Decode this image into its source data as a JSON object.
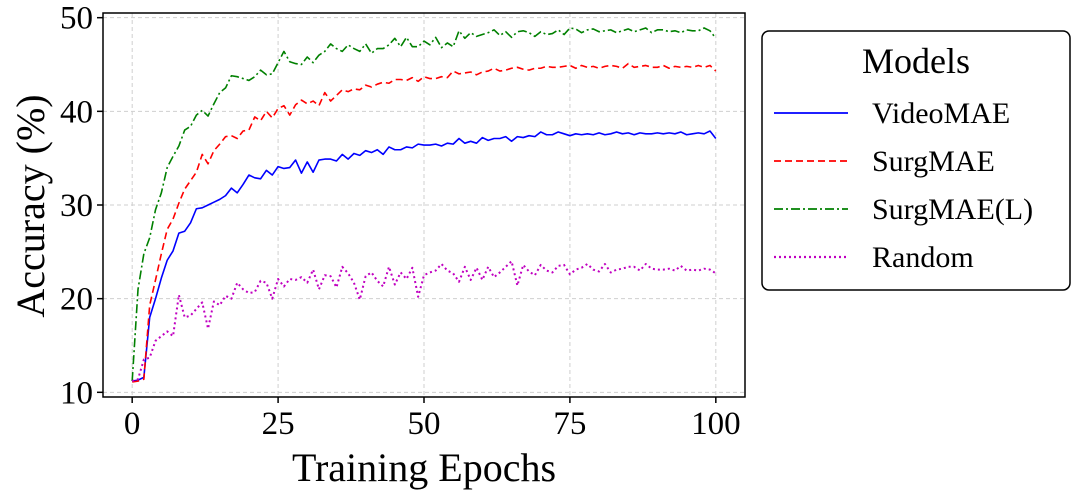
{
  "chart_data": {
    "type": "line",
    "title": "",
    "xlabel": "Training Epochs",
    "ylabel": "Accuracy (%)",
    "xlim": [
      -5,
      105
    ],
    "ylim": [
      9.5,
      50.5
    ],
    "xticks": [
      0,
      25,
      50,
      75,
      100
    ],
    "yticks": [
      10,
      20,
      30,
      40,
      50
    ],
    "grid": true,
    "legend": {
      "title": "Models",
      "position": "outside-right"
    },
    "x": [
      0,
      1,
      2,
      3,
      4,
      5,
      6,
      7,
      8,
      9,
      10,
      11,
      12,
      13,
      14,
      15,
      16,
      17,
      18,
      19,
      20,
      21,
      22,
      23,
      24,
      25,
      26,
      27,
      28,
      29,
      30,
      31,
      32,
      33,
      34,
      35,
      36,
      37,
      38,
      39,
      40,
      41,
      42,
      43,
      44,
      45,
      46,
      47,
      48,
      49,
      50,
      51,
      52,
      53,
      54,
      55,
      56,
      57,
      58,
      59,
      60,
      61,
      62,
      63,
      64,
      65,
      66,
      67,
      68,
      69,
      70,
      71,
      72,
      73,
      74,
      75,
      76,
      77,
      78,
      79,
      80,
      81,
      82,
      83,
      84,
      85,
      86,
      87,
      88,
      89,
      90,
      91,
      92,
      93,
      94,
      95,
      96,
      97,
      98,
      99,
      100
    ],
    "series": [
      {
        "name": "VideoMAE",
        "color": "#0000ff",
        "style": "solid",
        "values": [
          11.2,
          11.3,
          11.6,
          18.0,
          20.0,
          22.2,
          24.1,
          25.1,
          27.0,
          27.2,
          28.1,
          29.6,
          29.7,
          30.0,
          30.3,
          30.6,
          31.0,
          31.8,
          31.3,
          32.2,
          33.2,
          32.9,
          32.8,
          33.7,
          33.2,
          34.1,
          33.9,
          34.0,
          34.8,
          33.4,
          34.6,
          33.5,
          34.8,
          34.9,
          34.9,
          34.7,
          35.4,
          34.9,
          35.5,
          35.3,
          35.8,
          35.6,
          35.9,
          35.4,
          36.2,
          35.9,
          35.9,
          36.2,
          36.1,
          36.5,
          36.4,
          36.4,
          36.5,
          36.3,
          36.6,
          36.5,
          37.1,
          36.6,
          36.8,
          36.6,
          37.2,
          36.9,
          37.1,
          37.1,
          37.3,
          36.8,
          37.3,
          37.2,
          37.4,
          37.3,
          37.8,
          37.5,
          37.5,
          37.8,
          37.6,
          37.4,
          37.6,
          37.5,
          37.6,
          37.5,
          37.7,
          37.5,
          37.6,
          37.8,
          37.6,
          37.7,
          37.5,
          37.7,
          37.6,
          37.6,
          37.7,
          37.6,
          37.7,
          37.6,
          37.8,
          37.5,
          37.6,
          37.7,
          37.6,
          37.9,
          37.1
        ]
      },
      {
        "name": "SurgMAE",
        "color": "#ff0000",
        "style": "dashed",
        "values": [
          11.1,
          11.2,
          11.4,
          19.3,
          22.0,
          24.8,
          27.4,
          28.5,
          30.2,
          31.7,
          32.6,
          33.5,
          35.4,
          34.4,
          35.8,
          36.5,
          37.3,
          37.4,
          37.1,
          37.9,
          38.0,
          39.4,
          39.0,
          40.0,
          39.3,
          40.3,
          40.6,
          39.6,
          40.7,
          41.2,
          40.8,
          41.1,
          40.6,
          42.0,
          41.1,
          41.7,
          42.3,
          42.1,
          42.4,
          42.3,
          42.8,
          42.6,
          42.9,
          43.1,
          43.0,
          43.4,
          43.4,
          43.3,
          43.6,
          43.2,
          43.7,
          43.5,
          43.5,
          43.7,
          43.6,
          44.3,
          44.0,
          44.1,
          44.2,
          43.9,
          44.2,
          44.3,
          44.6,
          44.3,
          44.4,
          44.6,
          44.7,
          44.5,
          44.4,
          44.6,
          44.6,
          44.8,
          44.7,
          44.7,
          44.8,
          44.9,
          44.6,
          44.9,
          44.7,
          44.8,
          44.6,
          44.8,
          44.9,
          44.8,
          44.6,
          45.1,
          44.7,
          44.8,
          44.9,
          44.7,
          44.7,
          44.9,
          44.6,
          44.8,
          44.7,
          44.8,
          44.7,
          44.9,
          44.7,
          44.9,
          44.3
        ]
      },
      {
        "name": "SurgMAE(L)",
        "color": "#008000",
        "style": "dashdot",
        "values": [
          11.2,
          21.0,
          24.8,
          26.5,
          29.5,
          31.3,
          34.0,
          35.2,
          36.3,
          38.0,
          38.4,
          39.6,
          40.1,
          39.5,
          40.8,
          42.0,
          42.5,
          43.8,
          43.7,
          43.5,
          43.3,
          43.7,
          44.4,
          43.9,
          44.0,
          45.2,
          46.4,
          45.3,
          45.1,
          45.0,
          45.8,
          45.2,
          46.0,
          46.4,
          47.2,
          46.7,
          46.4,
          47.1,
          46.7,
          46.4,
          47.2,
          46.2,
          46.7,
          46.7,
          47.1,
          47.8,
          46.9,
          47.9,
          46.9,
          46.9,
          47.5,
          47.1,
          47.9,
          46.8,
          47.3,
          46.9,
          48.6,
          47.8,
          48.4,
          48.0,
          48.2,
          48.4,
          48.7,
          48.1,
          48.5,
          47.9,
          48.5,
          48.6,
          48.4,
          48.0,
          48.5,
          48.2,
          48.3,
          48.7,
          48.2,
          48.9,
          48.8,
          48.4,
          48.7,
          48.8,
          48.5,
          48.6,
          48.7,
          48.4,
          48.6,
          48.8,
          48.5,
          48.7,
          48.9,
          48.4,
          48.7,
          48.7,
          48.5,
          48.6,
          48.4,
          48.7,
          48.6,
          48.6,
          48.9,
          48.6,
          47.8
        ]
      },
      {
        "name": "Random",
        "color": "#c000c0",
        "style": "dotted",
        "values": [
          11.2,
          11.4,
          13.5,
          13.7,
          15.5,
          16.0,
          16.5,
          16.0,
          20.4,
          18.0,
          18.2,
          18.9,
          19.6,
          16.8,
          19.7,
          19.3,
          20.3,
          20.0,
          21.7,
          21.0,
          20.6,
          20.7,
          21.9,
          21.7,
          20.0,
          22.1,
          21.3,
          22.1,
          22.0,
          22.3,
          21.7,
          23.1,
          21.0,
          22.5,
          22.4,
          21.2,
          23.4,
          22.7,
          21.7,
          19.9,
          22.4,
          22.8,
          21.9,
          21.3,
          23.4,
          21.5,
          22.8,
          22.1,
          23.3,
          20.2,
          22.5,
          22.8,
          23.0,
          23.7,
          23.0,
          22.7,
          21.8,
          23.4,
          22.0,
          23.3,
          22.0,
          23.4,
          22.3,
          22.8,
          23.4,
          24.0,
          21.4,
          23.6,
          22.9,
          22.5,
          23.6,
          23.0,
          22.8,
          23.5,
          23.6,
          22.6,
          23.1,
          23.3,
          23.7,
          23.1,
          22.9,
          23.7,
          22.8,
          23.1,
          23.2,
          23.4,
          23.4,
          23.0,
          23.7,
          23.2,
          23.1,
          23.1,
          23.2,
          23.0,
          23.5,
          23.0,
          23.1,
          23.0,
          23.2,
          23.1,
          22.7
        ]
      }
    ]
  }
}
